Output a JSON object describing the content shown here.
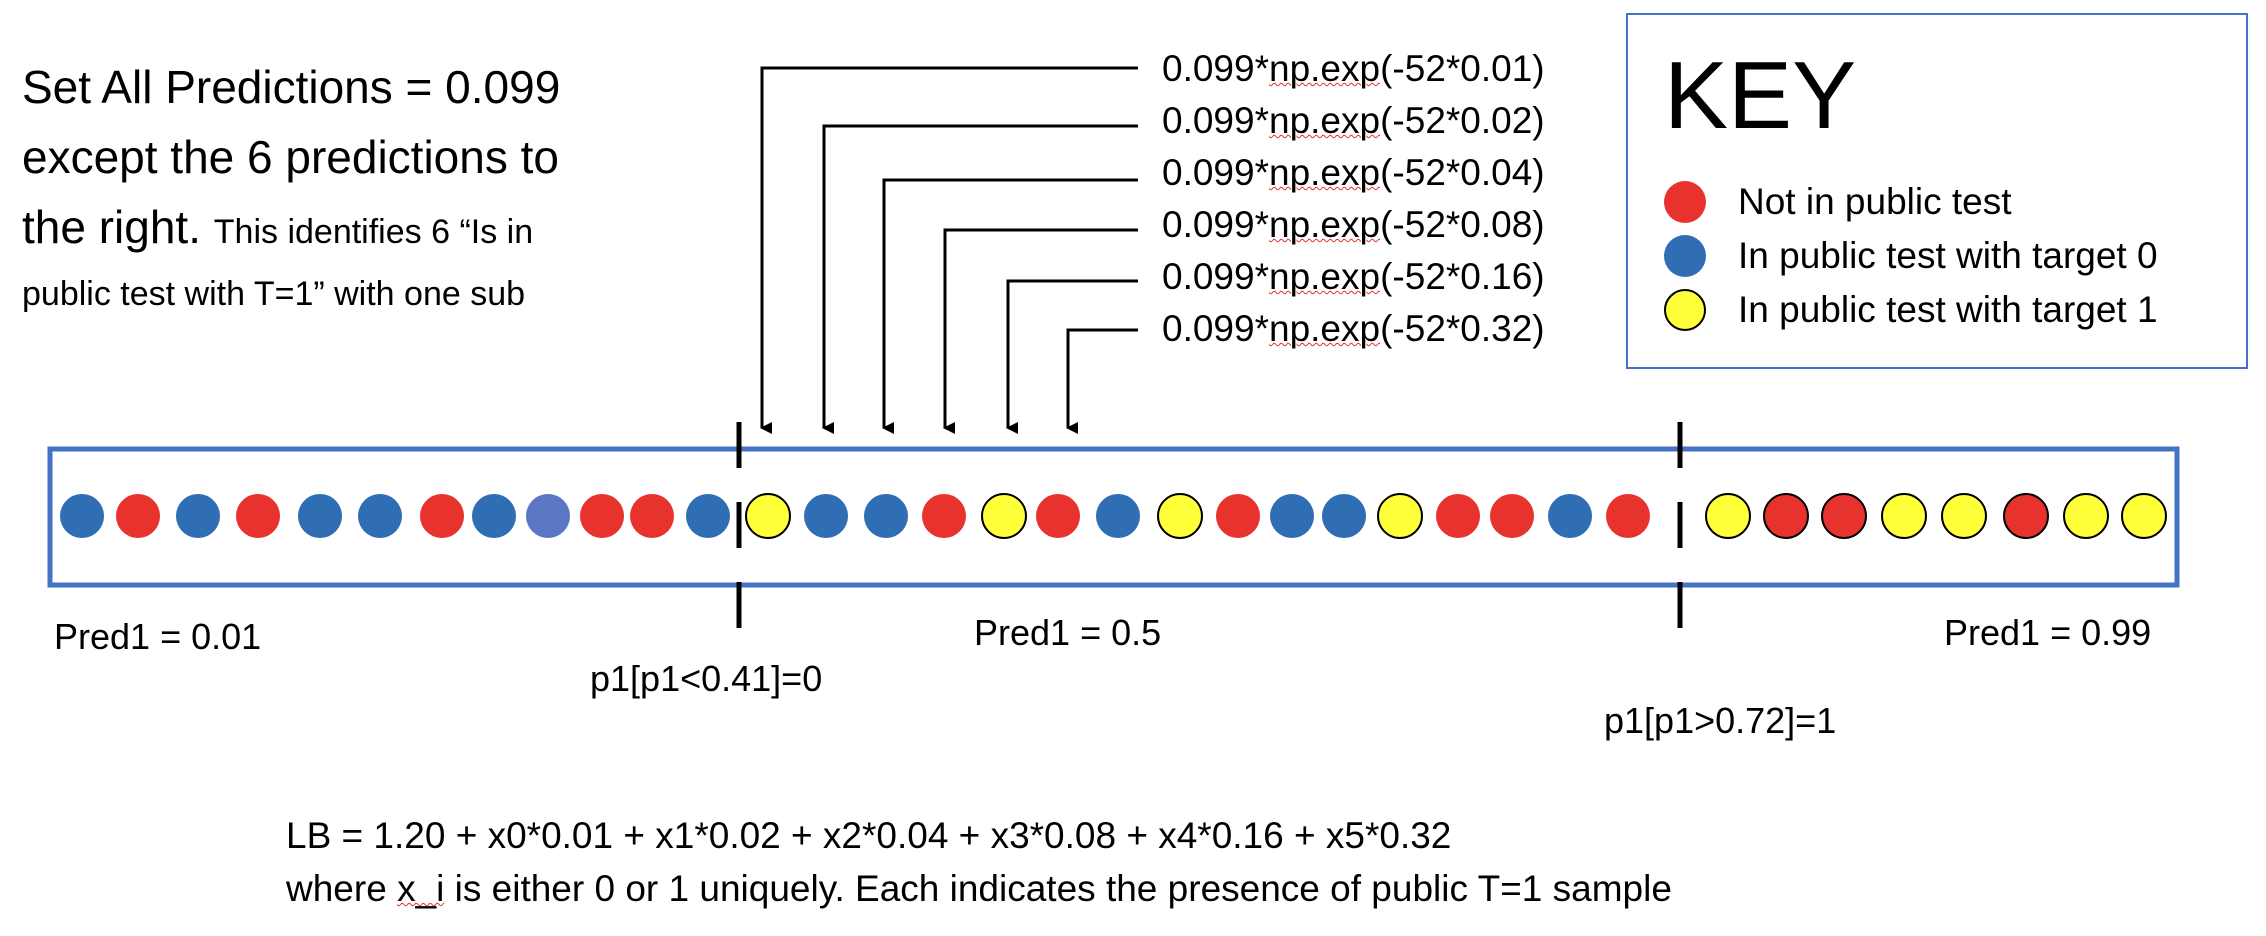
{
  "description": {
    "line1": "Set All Predictions = 0.099",
    "line2": "except the 6 predictions to",
    "line3_large": "the right.",
    "line3_small": "This identifies 6 “Is in",
    "line4": "public test with T=1” with one sub"
  },
  "key": {
    "title": "KEY",
    "items": [
      {
        "label": "Not in public test",
        "color": "#e8322d"
      },
      {
        "label": "In public test with target 0",
        "color": "#2f6db5"
      },
      {
        "label": "In public test with target 1",
        "color": "#ffff3a"
      }
    ]
  },
  "formulas": [
    {
      "prefix": "0.099*",
      "func": "np.exp",
      "args": "(-52*0.01)"
    },
    {
      "prefix": "0.099*",
      "func": "np.exp",
      "args": "(-52*0.02)"
    },
    {
      "prefix": "0.099*",
      "func": "np.exp",
      "args": "(-52*0.04)"
    },
    {
      "prefix": "0.099*",
      "func": "np.exp",
      "args": "(-52*0.08)"
    },
    {
      "prefix": "0.099*",
      "func": "np.exp",
      "args": "(-52*0.16)"
    },
    {
      "prefix": "0.099*",
      "func": "np.exp",
      "args": "(-52*0.32)"
    }
  ],
  "region_labels": {
    "left": "Pred1 = 0.01",
    "middle": "Pred1 = 0.5",
    "right": "Pred1 = 0.99",
    "lower_threshold": "p1[p1<0.41]=0",
    "upper_threshold": "p1[p1>0.72]=1"
  },
  "dots": [
    "b",
    "r",
    "b",
    "r",
    "b",
    "b",
    "r",
    "b",
    "lb",
    "r",
    "r",
    "b",
    "y",
    "b",
    "b",
    "r",
    "y",
    "r",
    "b",
    "y",
    "r",
    "b",
    "b",
    "y",
    "r",
    "r",
    "b",
    "r",
    "y",
    "r",
    "r",
    "y",
    "y",
    "r",
    "y",
    "y"
  ],
  "dot_colors": {
    "r": "#e8322d",
    "b": "#2f6db5",
    "lb": "#5b77c4",
    "y": "#ffff3a"
  },
  "equation": {
    "lb": "LB = 1.20 + x0*0.01 + x1*0.02 + x2*0.04 + x3*0.08 + x4*0.16 + x5*0.32",
    "where_prefix": "where ",
    "where_var": "x_i",
    "where_rest": " is either 0 or 1 uniquely. Each indicates the presence of public T=1 sample"
  }
}
